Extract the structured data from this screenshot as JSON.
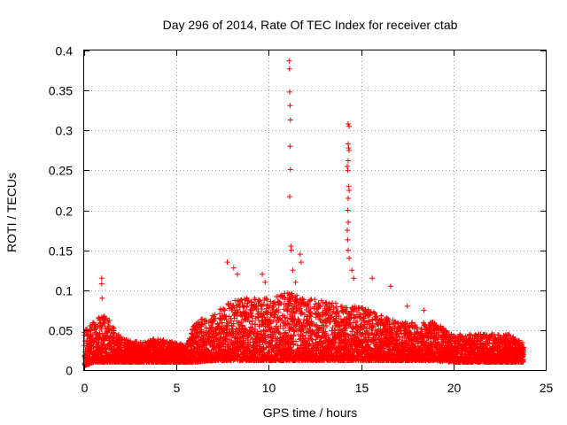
{
  "chart_data": {
    "type": "scatter",
    "title": "Day 296 of 2014, Rate Of TEC Index for receiver ctab",
    "xlabel": "GPS time / hours",
    "ylabel": "ROTI / TECUs",
    "xlim": [
      0,
      25
    ],
    "ylim": [
      0,
      0.4
    ],
    "xticks": [
      0,
      5,
      10,
      15,
      20,
      25
    ],
    "yticks": [
      0,
      0.05,
      0.1,
      0.15,
      0.2,
      0.25,
      0.3,
      0.35,
      0.4
    ],
    "xtick_labels": [
      "0",
      "5",
      "10",
      "15",
      "20",
      "25"
    ],
    "ytick_labels": [
      "0",
      "0.05",
      "0.1",
      "0.15",
      "0.2",
      "0.25",
      "0.3",
      "0.35",
      "0.4"
    ],
    "grid": true,
    "marker": "+",
    "color": "#ff0000",
    "series": [
      {
        "name": "ROTI",
        "points": [
          [
            0.95,
            0.115
          ],
          [
            0.95,
            0.108
          ],
          [
            0.97,
            0.09
          ],
          [
            7.75,
            0.135
          ],
          [
            8.1,
            0.128
          ],
          [
            8.3,
            0.12
          ],
          [
            9.65,
            0.12
          ],
          [
            9.8,
            0.11
          ],
          [
            11.1,
            0.387
          ],
          [
            11.12,
            0.377
          ],
          [
            11.13,
            0.348
          ],
          [
            11.15,
            0.331
          ],
          [
            11.17,
            0.313
          ],
          [
            11.15,
            0.28
          ],
          [
            11.17,
            0.251
          ],
          [
            11.13,
            0.217
          ],
          [
            11.2,
            0.155
          ],
          [
            11.22,
            0.15
          ],
          [
            11.3,
            0.125
          ],
          [
            11.45,
            0.11
          ],
          [
            11.7,
            0.145
          ],
          [
            11.75,
            0.135
          ],
          [
            14.3,
            0.308
          ],
          [
            14.35,
            0.305
          ],
          [
            14.3,
            0.283
          ],
          [
            14.32,
            0.278
          ],
          [
            14.35,
            0.275
          ],
          [
            14.3,
            0.262
          ],
          [
            14.25,
            0.255
          ],
          [
            14.28,
            0.25
          ],
          [
            14.33,
            0.23
          ],
          [
            14.35,
            0.225
          ],
          [
            14.3,
            0.215
          ],
          [
            14.28,
            0.2
          ],
          [
            14.3,
            0.185
          ],
          [
            14.25,
            0.175
          ],
          [
            14.27,
            0.163
          ],
          [
            14.3,
            0.15
          ],
          [
            14.35,
            0.14
          ],
          [
            14.5,
            0.125
          ],
          [
            14.6,
            0.115
          ],
          [
            15.6,
            0.115
          ],
          [
            16.6,
            0.105
          ],
          [
            17.5,
            0.08
          ],
          [
            18.4,
            0.075
          ],
          [
            19.3,
            0.055
          ]
        ],
        "density_envelope": {
          "description": "dense background cloud of ROTI samples, approximate lower/upper bounds per hour",
          "x": [
            0,
            0.5,
            1,
            1.5,
            2,
            3,
            4,
            5,
            5.5,
            6,
            7,
            8,
            9,
            10,
            11,
            12,
            13,
            14,
            15,
            16,
            17,
            18,
            19,
            20,
            21,
            22,
            23,
            23.8
          ],
          "low": [
            0.005,
            0.01,
            0.01,
            0.01,
            0.01,
            0.01,
            0.01,
            0.01,
            0.01,
            0.01,
            0.012,
            0.012,
            0.012,
            0.012,
            0.012,
            0.012,
            0.012,
            0.012,
            0.012,
            0.012,
            0.012,
            0.012,
            0.012,
            0.01,
            0.01,
            0.01,
            0.01,
            0.01
          ],
          "high": [
            0.05,
            0.06,
            0.07,
            0.06,
            0.04,
            0.035,
            0.04,
            0.035,
            0.03,
            0.06,
            0.07,
            0.09,
            0.09,
            0.09,
            0.1,
            0.09,
            0.09,
            0.08,
            0.08,
            0.07,
            0.06,
            0.06,
            0.06,
            0.045,
            0.045,
            0.045,
            0.045,
            0.035
          ]
        }
      }
    ]
  }
}
